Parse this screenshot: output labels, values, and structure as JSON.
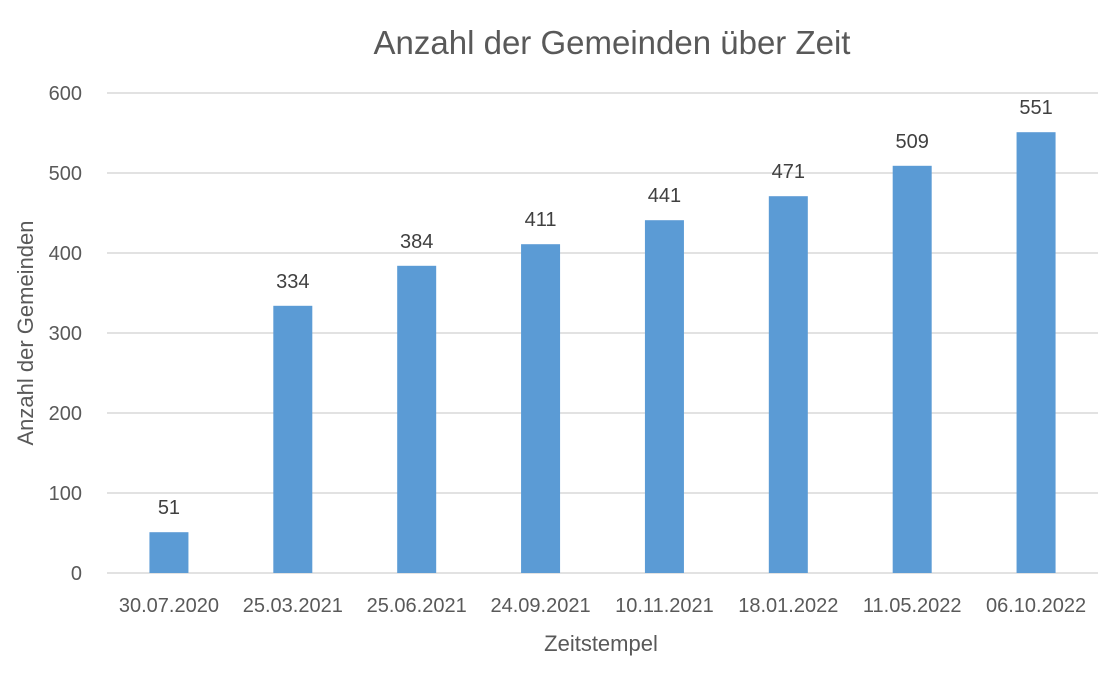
{
  "chart_data": {
    "type": "bar",
    "title": "Anzahl der Gemeinden über Zeit",
    "xlabel": "Zeitstempel",
    "ylabel": "Anzahl der Gemeinden",
    "categories": [
      "30.07.2020",
      "25.03.2021",
      "25.06.2021",
      "24.09.2021",
      "10.11.2021",
      "18.01.2022",
      "11.05.2022",
      "06.10.2022"
    ],
    "values": [
      51,
      334,
      384,
      411,
      441,
      471,
      509,
      551
    ],
    "ylim": [
      0,
      600
    ],
    "yticks": [
      0,
      100,
      200,
      300,
      400,
      500,
      600
    ],
    "grid": true,
    "legend": "none",
    "bar_color": "#5b9bd5"
  }
}
